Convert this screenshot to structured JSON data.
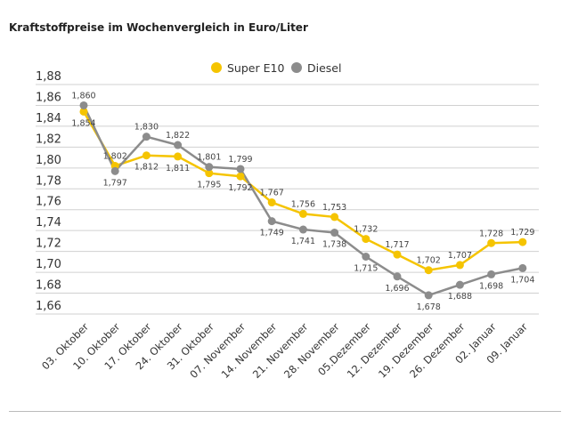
{
  "chart_data": {
    "type": "line",
    "title": "Kraftstoffpreise im Wochenvergleich in Euro/Liter",
    "categories": [
      "03. Oktober",
      "10. Oktober",
      "17. Oktober",
      "24. Oktober",
      "31. Oktober",
      "07. November",
      "14. November",
      "21. November",
      "28. November",
      "05.Dezember",
      "12. Dezember",
      "19. Dezember",
      "26. Dezember",
      "02. Januar",
      "09. Januar"
    ],
    "series": [
      {
        "name": "Super E10",
        "color": "#f5c400",
        "values": [
          1.854,
          1.802,
          1.812,
          1.811,
          1.795,
          1.792,
          1.767,
          1.756,
          1.753,
          1.732,
          1.717,
          1.702,
          1.707,
          1.728,
          1.729
        ]
      },
      {
        "name": "Diesel",
        "color": "#8c8c8c",
        "values": [
          1.86,
          1.797,
          1.83,
          1.822,
          1.801,
          1.799,
          1.749,
          1.741,
          1.738,
          1.715,
          1.696,
          1.678,
          1.688,
          1.698,
          1.704
        ]
      }
    ],
    "yticks": [
      "1,88",
      "1,86",
      "1,84",
      "1,82",
      "1,80",
      "1,78",
      "1,76",
      "1,74",
      "1,72",
      "1,70",
      "1,68",
      "1,66"
    ],
    "ylim": [
      1.66,
      1.88
    ],
    "grid": true,
    "legend": "top-center"
  }
}
